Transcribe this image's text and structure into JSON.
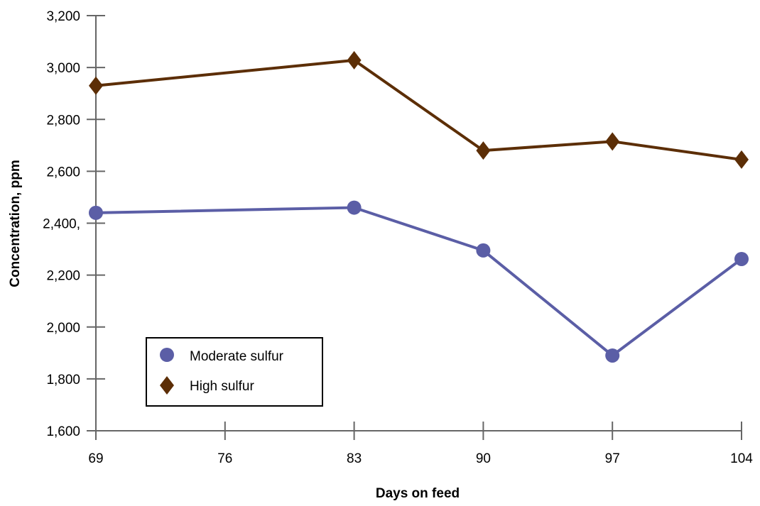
{
  "chart_data": {
    "type": "line",
    "xlabel": "Days on feed",
    "ylabel": "Concentration, ppm",
    "xlim": [
      69,
      104
    ],
    "ylim": [
      1600,
      3200
    ],
    "x_ticks": [
      69,
      76,
      83,
      90,
      97,
      104
    ],
    "x_tick_labels": [
      "69",
      "76",
      "83",
      "90",
      "97",
      "104"
    ],
    "y_ticks": [
      1600,
      1800,
      2000,
      2200,
      2400,
      2600,
      2800,
      3000,
      3200
    ],
    "y_tick_labels": [
      "1,600",
      "1,800",
      "2,000",
      "2,200",
      "2,400,",
      "2,600",
      "2,800",
      "3,000",
      "3,200"
    ],
    "grid": false,
    "legend_position": "lower-left",
    "x": [
      69,
      83,
      90,
      97,
      104
    ],
    "series": [
      {
        "name": "Moderate sulfur",
        "marker": "circle",
        "color": "#5b5ea6",
        "values": [
          2440,
          2460,
          2295,
          1890,
          2262
        ]
      },
      {
        "name": "High sulfur",
        "marker": "diamond",
        "color": "#5c2e06",
        "values": [
          2930,
          3028,
          2680,
          2715,
          2645
        ]
      }
    ]
  }
}
